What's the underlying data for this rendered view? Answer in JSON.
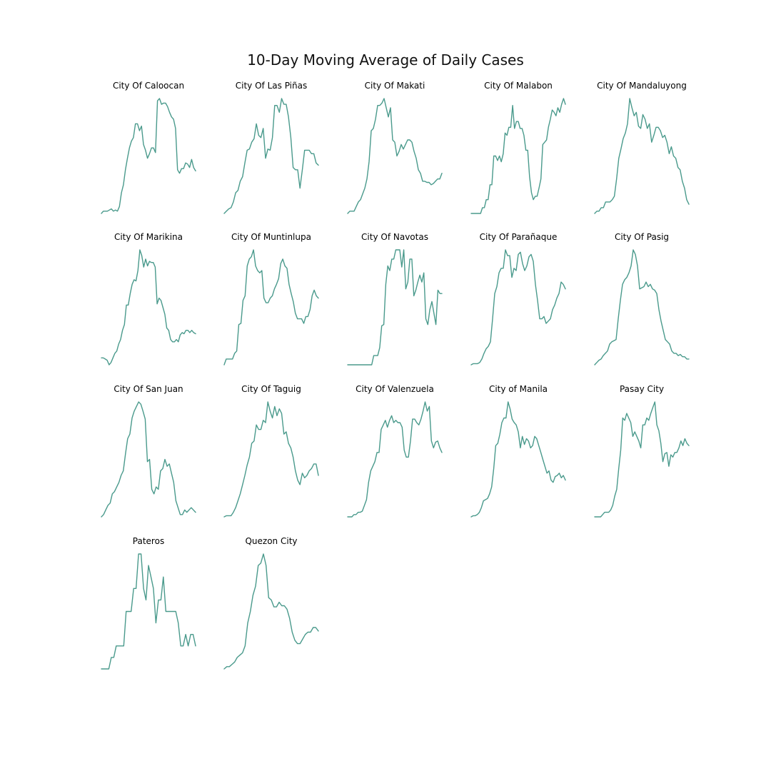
{
  "chart_data": {
    "type": "line",
    "title": "10-Day Moving Average of Daily Cases",
    "line_color": "#4a9a8c",
    "axes_visible": false,
    "grid": false,
    "legend": "none",
    "layout": "small-multiples",
    "panels": [
      {
        "title": "City Of Caloocan",
        "values": [
          0.0,
          0.02,
          0.02,
          0.02,
          0.03,
          0.04,
          0.02,
          0.03,
          0.02,
          0.06,
          0.18,
          0.25,
          0.38,
          0.48,
          0.57,
          0.63,
          0.66,
          0.78,
          0.78,
          0.72,
          0.76,
          0.6,
          0.55,
          0.48,
          0.52,
          0.57,
          0.57,
          0.53,
          0.98,
          1.0,
          0.95,
          0.96,
          0.96,
          0.93,
          0.88,
          0.84,
          0.82,
          0.74,
          0.38,
          0.35,
          0.39,
          0.39,
          0.44,
          0.43,
          0.4,
          0.47,
          0.4,
          0.37
        ]
      },
      {
        "title": "City Of Las Piñas",
        "values": [
          0.0,
          0.02,
          0.04,
          0.05,
          0.1,
          0.18,
          0.2,
          0.28,
          0.32,
          0.44,
          0.55,
          0.56,
          0.62,
          0.65,
          0.78,
          0.68,
          0.66,
          0.74,
          0.48,
          0.56,
          0.55,
          0.66,
          0.94,
          0.94,
          0.88,
          1.0,
          0.95,
          0.95,
          0.84,
          0.66,
          0.4,
          0.38,
          0.38,
          0.22,
          0.38,
          0.55,
          0.55,
          0.55,
          0.52,
          0.52,
          0.44,
          0.42
        ]
      },
      {
        "title": "City Of Makati",
        "values": [
          0.0,
          0.02,
          0.02,
          0.02,
          0.06,
          0.1,
          0.12,
          0.17,
          0.22,
          0.3,
          0.45,
          0.72,
          0.74,
          0.82,
          0.94,
          0.94,
          0.96,
          1.0,
          0.92,
          0.84,
          0.92,
          0.64,
          0.62,
          0.5,
          0.54,
          0.6,
          0.56,
          0.6,
          0.64,
          0.64,
          0.62,
          0.54,
          0.48,
          0.38,
          0.35,
          0.28,
          0.28,
          0.27,
          0.27,
          0.25,
          0.26,
          0.28,
          0.3,
          0.3,
          0.35
        ]
      },
      {
        "title": "City Of Malabon",
        "values": [
          0.0,
          0.0,
          0.0,
          0.0,
          0.0,
          0.0,
          0.05,
          0.05,
          0.12,
          0.12,
          0.25,
          0.25,
          0.5,
          0.5,
          0.46,
          0.5,
          0.45,
          0.52,
          0.7,
          0.68,
          0.75,
          0.75,
          0.94,
          0.74,
          0.8,
          0.8,
          0.74,
          0.74,
          0.68,
          0.55,
          0.55,
          0.32,
          0.18,
          0.12,
          0.15,
          0.15,
          0.22,
          0.3,
          0.6,
          0.62,
          0.64,
          0.75,
          0.82,
          0.9,
          0.88,
          0.85,
          0.92,
          0.88,
          0.95,
          1.0,
          0.95
        ]
      },
      {
        "title": "City Of Mandaluyong",
        "values": [
          0.0,
          0.02,
          0.02,
          0.05,
          0.05,
          0.1,
          0.1,
          0.1,
          0.12,
          0.15,
          0.3,
          0.48,
          0.56,
          0.65,
          0.7,
          0.78,
          1.0,
          0.92,
          0.85,
          0.88,
          0.76,
          0.74,
          0.86,
          0.82,
          0.74,
          0.78,
          0.62,
          0.68,
          0.75,
          0.75,
          0.72,
          0.66,
          0.68,
          0.62,
          0.52,
          0.58,
          0.5,
          0.48,
          0.4,
          0.38,
          0.28,
          0.22,
          0.12,
          0.08
        ]
      },
      {
        "title": "City Of Marikina",
        "values": [
          0.06,
          0.06,
          0.05,
          0.04,
          0.0,
          0.02,
          0.06,
          0.1,
          0.12,
          0.18,
          0.22,
          0.3,
          0.35,
          0.52,
          0.52,
          0.62,
          0.7,
          0.74,
          0.73,
          0.82,
          1.0,
          0.95,
          0.85,
          0.92,
          0.86,
          0.9,
          0.89,
          0.89,
          0.85,
          0.53,
          0.58,
          0.56,
          0.5,
          0.44,
          0.32,
          0.3,
          0.22,
          0.2,
          0.2,
          0.22,
          0.2,
          0.26,
          0.28,
          0.27,
          0.3,
          0.3,
          0.28,
          0.3,
          0.28,
          0.27
        ]
      },
      {
        "title": "City Of Muntinlupa",
        "values": [
          0.0,
          0.05,
          0.05,
          0.05,
          0.05,
          0.1,
          0.12,
          0.35,
          0.36,
          0.56,
          0.6,
          0.86,
          0.92,
          0.94,
          1.0,
          0.86,
          0.82,
          0.8,
          0.82,
          0.58,
          0.54,
          0.54,
          0.58,
          0.6,
          0.66,
          0.7,
          0.75,
          0.88,
          0.92,
          0.86,
          0.84,
          0.7,
          0.62,
          0.55,
          0.45,
          0.4,
          0.4,
          0.4,
          0.36,
          0.42,
          0.42,
          0.48,
          0.6,
          0.65,
          0.6,
          0.58
        ]
      },
      {
        "title": "City Of Navotas",
        "values": [
          0.0,
          0.0,
          0.0,
          0.0,
          0.0,
          0.0,
          0.0,
          0.0,
          0.0,
          0.0,
          0.0,
          0.0,
          0.0,
          0.08,
          0.08,
          0.08,
          0.15,
          0.34,
          0.35,
          0.7,
          0.86,
          0.82,
          0.92,
          0.92,
          1.0,
          1.0,
          1.0,
          0.85,
          1.0,
          0.66,
          0.72,
          0.92,
          0.92,
          0.6,
          0.65,
          0.72,
          0.78,
          0.72,
          0.8,
          0.4,
          0.35,
          0.48,
          0.55,
          0.45,
          0.35,
          0.65,
          0.62,
          0.62
        ]
      },
      {
        "title": "City Of Parañaque",
        "values": [
          0.0,
          0.01,
          0.01,
          0.01,
          0.02,
          0.05,
          0.1,
          0.14,
          0.16,
          0.2,
          0.4,
          0.62,
          0.68,
          0.8,
          0.84,
          0.84,
          1.0,
          0.95,
          0.95,
          0.76,
          0.84,
          0.82,
          0.96,
          0.98,
          0.88,
          0.82,
          0.86,
          0.94,
          0.96,
          0.9,
          0.7,
          0.56,
          0.4,
          0.4,
          0.42,
          0.36,
          0.38,
          0.4,
          0.48,
          0.52,
          0.58,
          0.62,
          0.72,
          0.7,
          0.66
        ]
      },
      {
        "title": "City Of Pasig",
        "values": [
          0.0,
          0.02,
          0.04,
          0.05,
          0.08,
          0.1,
          0.12,
          0.18,
          0.2,
          0.21,
          0.22,
          0.4,
          0.56,
          0.7,
          0.74,
          0.76,
          0.8,
          0.86,
          1.0,
          0.96,
          0.86,
          0.66,
          0.67,
          0.68,
          0.72,
          0.68,
          0.7,
          0.66,
          0.65,
          0.62,
          0.48,
          0.38,
          0.3,
          0.22,
          0.2,
          0.18,
          0.12,
          0.1,
          0.1,
          0.08,
          0.09,
          0.07,
          0.07,
          0.05,
          0.05
        ]
      },
      {
        "title": "City Of San Juan",
        "values": [
          0.0,
          0.02,
          0.06,
          0.1,
          0.12,
          0.2,
          0.22,
          0.26,
          0.3,
          0.36,
          0.4,
          0.55,
          0.68,
          0.72,
          0.86,
          0.92,
          0.96,
          1.0,
          0.98,
          0.92,
          0.85,
          0.48,
          0.5,
          0.24,
          0.2,
          0.26,
          0.24,
          0.4,
          0.42,
          0.5,
          0.44,
          0.46,
          0.38,
          0.3,
          0.14,
          0.08,
          0.02,
          0.02,
          0.06,
          0.04,
          0.06,
          0.08,
          0.06,
          0.04
        ]
      },
      {
        "title": "City Of Taguig",
        "values": [
          0.0,
          0.01,
          0.01,
          0.01,
          0.04,
          0.08,
          0.14,
          0.2,
          0.28,
          0.36,
          0.45,
          0.52,
          0.64,
          0.66,
          0.8,
          0.76,
          0.76,
          0.84,
          0.82,
          1.0,
          0.92,
          0.86,
          0.96,
          0.88,
          0.94,
          0.9,
          0.72,
          0.74,
          0.64,
          0.6,
          0.52,
          0.4,
          0.32,
          0.28,
          0.38,
          0.34,
          0.36,
          0.4,
          0.42,
          0.46,
          0.46,
          0.36
        ]
      },
      {
        "title": "City Of Valenzuela",
        "values": [
          0.0,
          0.0,
          0.0,
          0.02,
          0.02,
          0.04,
          0.04,
          0.05,
          0.1,
          0.15,
          0.3,
          0.4,
          0.44,
          0.48,
          0.56,
          0.56,
          0.76,
          0.8,
          0.84,
          0.78,
          0.84,
          0.88,
          0.82,
          0.84,
          0.82,
          0.82,
          0.78,
          0.58,
          0.52,
          0.52,
          0.66,
          0.85,
          0.85,
          0.82,
          0.8,
          0.85,
          0.92,
          1.0,
          0.92,
          0.96,
          0.66,
          0.6,
          0.65,
          0.66,
          0.6,
          0.56
        ]
      },
      {
        "title": "City of Manila",
        "values": [
          0.0,
          0.01,
          0.01,
          0.02,
          0.04,
          0.08,
          0.14,
          0.15,
          0.16,
          0.2,
          0.26,
          0.42,
          0.62,
          0.64,
          0.72,
          0.82,
          0.86,
          0.86,
          1.0,
          0.94,
          0.85,
          0.82,
          0.8,
          0.74,
          0.6,
          0.7,
          0.63,
          0.68,
          0.66,
          0.6,
          0.62,
          0.7,
          0.68,
          0.62,
          0.56,
          0.5,
          0.44,
          0.38,
          0.4,
          0.32,
          0.3,
          0.35,
          0.36,
          0.38,
          0.34,
          0.36,
          0.32
        ]
      },
      {
        "title": "Pasay City",
        "values": [
          0.0,
          0.0,
          0.0,
          0.0,
          0.02,
          0.04,
          0.04,
          0.04,
          0.06,
          0.1,
          0.18,
          0.24,
          0.42,
          0.58,
          0.86,
          0.84,
          0.9,
          0.86,
          0.82,
          0.7,
          0.74,
          0.7,
          0.66,
          0.6,
          0.8,
          0.8,
          0.86,
          0.84,
          0.9,
          0.95,
          1.0,
          0.8,
          0.75,
          0.64,
          0.48,
          0.55,
          0.56,
          0.44,
          0.54,
          0.52,
          0.56,
          0.56,
          0.6,
          0.66,
          0.62,
          0.68,
          0.64,
          0.62
        ]
      },
      {
        "title": "Pateros",
        "values": [
          0.0,
          0.0,
          0.0,
          0.0,
          0.1,
          0.1,
          0.2,
          0.2,
          0.2,
          0.2,
          0.5,
          0.5,
          0.5,
          0.7,
          0.7,
          1.0,
          1.0,
          0.7,
          0.6,
          0.9,
          0.8,
          0.7,
          0.4,
          0.6,
          0.6,
          0.8,
          0.5,
          0.5,
          0.5,
          0.5,
          0.5,
          0.4,
          0.2,
          0.2,
          0.3,
          0.2,
          0.3,
          0.3,
          0.2
        ]
      },
      {
        "title": "Quezon City",
        "values": [
          0.0,
          0.02,
          0.02,
          0.04,
          0.06,
          0.1,
          0.12,
          0.14,
          0.2,
          0.4,
          0.5,
          0.64,
          0.72,
          0.9,
          0.92,
          1.0,
          0.9,
          0.62,
          0.6,
          0.54,
          0.54,
          0.58,
          0.55,
          0.55,
          0.52,
          0.44,
          0.32,
          0.25,
          0.22,
          0.22,
          0.26,
          0.3,
          0.32,
          0.32,
          0.36,
          0.36,
          0.33
        ]
      }
    ]
  }
}
